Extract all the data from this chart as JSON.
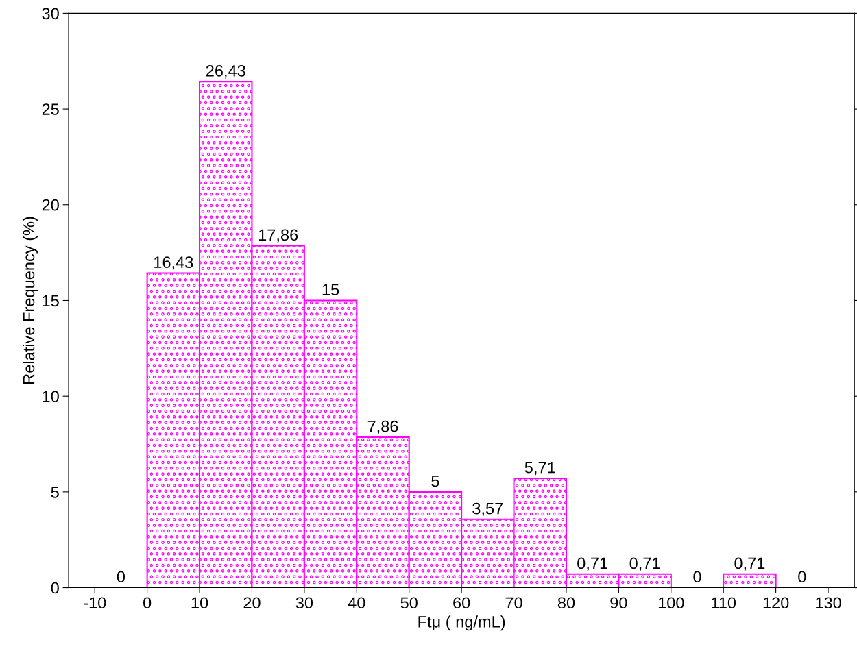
{
  "chart_data": {
    "type": "histogram",
    "xlabel": "Ftμ ( ng/mL)",
    "ylabel": "Relative Frequency (%)",
    "bins": [
      -10,
      0,
      10,
      20,
      30,
      40,
      50,
      60,
      70,
      80,
      90,
      100,
      110,
      120,
      130
    ],
    "values": [
      0,
      16.43,
      26.43,
      17.86,
      15,
      7.86,
      5,
      3.57,
      5.71,
      0.71,
      0.71,
      0,
      0.71,
      0
    ],
    "value_labels": [
      "0",
      "16,43",
      "26,43",
      "17,86",
      "15",
      "7,86",
      "5",
      "3,57",
      "5,71",
      "0,71",
      "0,71",
      "0",
      "0,71",
      "0"
    ],
    "color": "#ff00ff",
    "xlim": [
      -15,
      135
    ],
    "xticks": [
      -10,
      0,
      10,
      20,
      30,
      40,
      50,
      60,
      70,
      80,
      90,
      100,
      110,
      120,
      130
    ],
    "ylim": [
      0,
      30
    ],
    "yticks": [
      0,
      5,
      10,
      15,
      20,
      25,
      30
    ],
    "grid": false
  }
}
